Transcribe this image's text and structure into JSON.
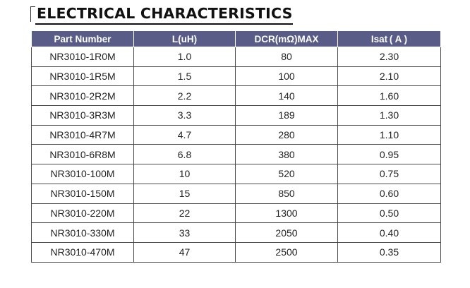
{
  "title": "ELECTRICAL CHARACTERISTICS",
  "table": {
    "headers": [
      "Part Number",
      "L(uH)",
      "DCR(mΩ)MAX",
      "Isat ( A )"
    ],
    "rows": [
      [
        "NR3010-1R0M",
        "1.0",
        "80",
        "2.30"
      ],
      [
        "NR3010-1R5M",
        "1.5",
        "100",
        "2.10"
      ],
      [
        "NR3010-2R2M",
        "2.2",
        "140",
        "1.60"
      ],
      [
        "NR3010-3R3M",
        "3.3",
        "189",
        "1.30"
      ],
      [
        "NR3010-4R7M",
        "4.7",
        "280",
        "1.10"
      ],
      [
        "NR3010-6R8M",
        "6.8",
        "380",
        "0.95"
      ],
      [
        "NR3010-100M",
        "10",
        "520",
        "0.75"
      ],
      [
        "NR3010-150M",
        "15",
        "850",
        "0.60"
      ],
      [
        "NR3010-220M",
        "22",
        "1300",
        "0.50"
      ],
      [
        "NR3010-330M",
        "33",
        "2050",
        "0.40"
      ],
      [
        "NR3010-470M",
        "47",
        "2500",
        "0.35"
      ]
    ]
  }
}
